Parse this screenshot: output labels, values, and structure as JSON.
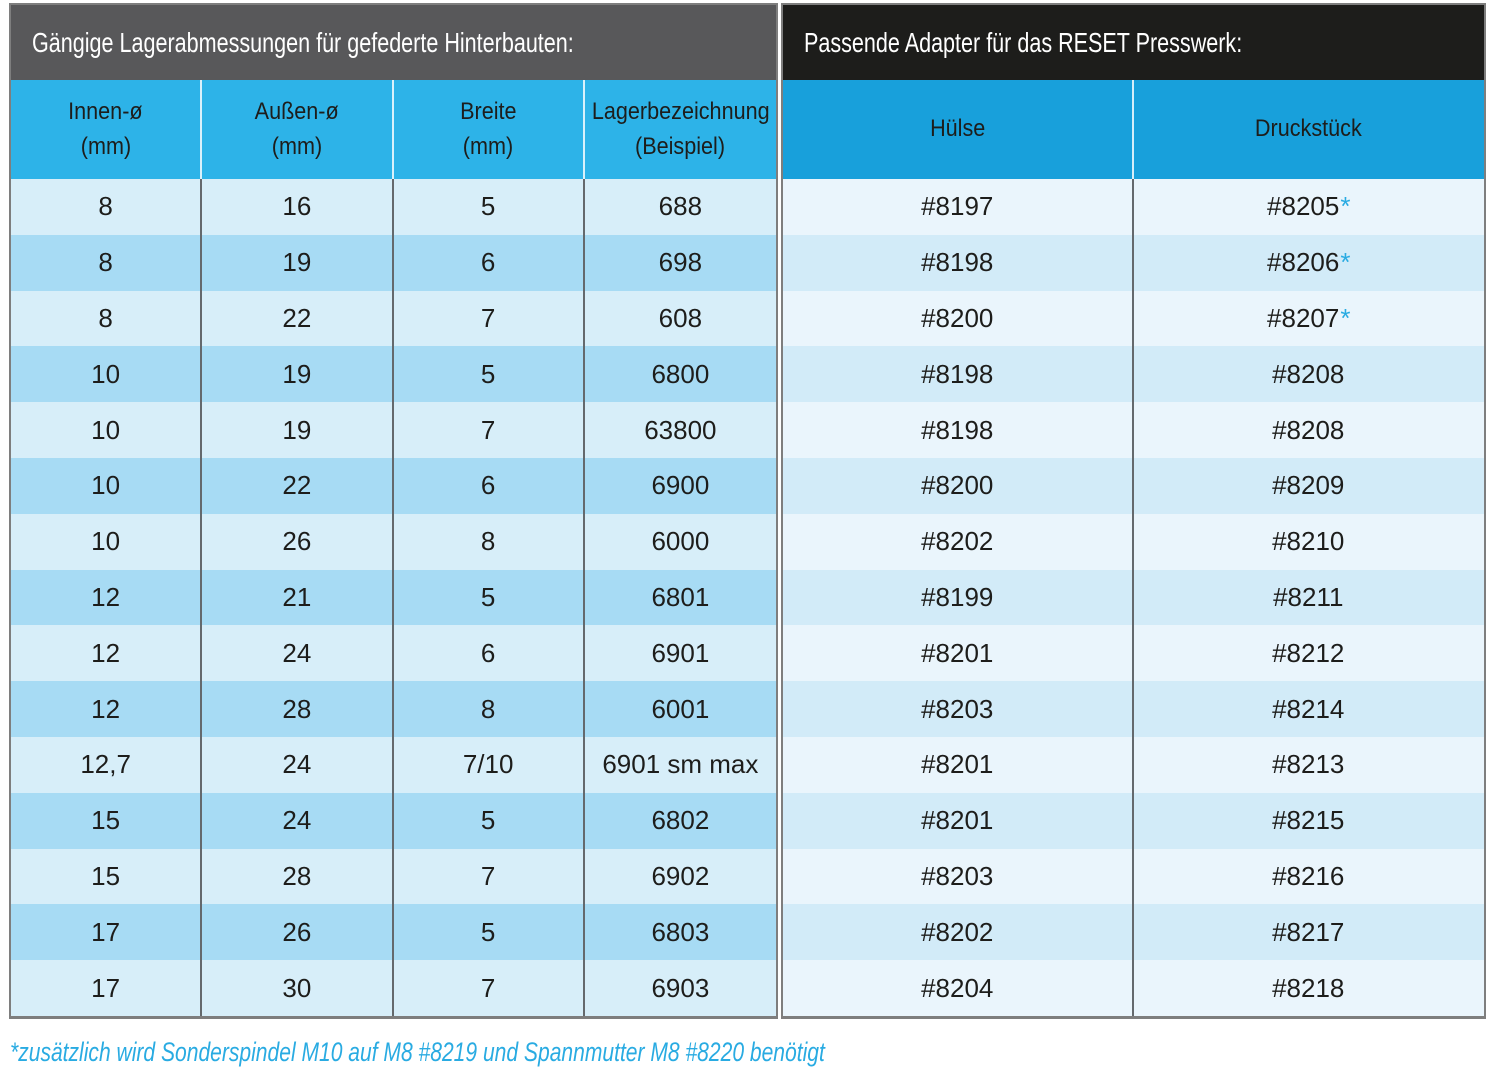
{
  "left_table": {
    "title": "Gängige Lagerabmessungen für gefederte Hinterbauten:",
    "columns": [
      {
        "key": "innen",
        "line1": "Innen-ø",
        "line2": "(mm)"
      },
      {
        "key": "aussen",
        "line1": "Außen-ø",
        "line2": "(mm)"
      },
      {
        "key": "breite",
        "line1": "Breite",
        "line2": "(mm)"
      },
      {
        "key": "lager",
        "line1": "Lagerbezeichnung",
        "line2": "(Beispiel)"
      }
    ]
  },
  "right_table": {
    "title": "Passende Adapter für das RESET Presswerk:",
    "columns": [
      {
        "key": "huelse",
        "line1": "Hülse"
      },
      {
        "key": "druckstueck",
        "line1": "Druckstück"
      }
    ]
  },
  "rows": [
    {
      "innen": "8",
      "aussen": "16",
      "breite": "5",
      "lager": "688",
      "huelse": "#8197",
      "druckstueck": "#8205",
      "star": "*"
    },
    {
      "innen": "8",
      "aussen": "19",
      "breite": "6",
      "lager": "698",
      "huelse": "#8198",
      "druckstueck": "#8206",
      "star": "*"
    },
    {
      "innen": "8",
      "aussen": "22",
      "breite": "7",
      "lager": "608",
      "huelse": "#8200",
      "druckstueck": "#8207",
      "star": "*"
    },
    {
      "innen": "10",
      "aussen": "19",
      "breite": "5",
      "lager": "6800",
      "huelse": "#8198",
      "druckstueck": "#8208",
      "star": ""
    },
    {
      "innen": "10",
      "aussen": "19",
      "breite": "7",
      "lager": "63800",
      "huelse": "#8198",
      "druckstueck": "#8208",
      "star": ""
    },
    {
      "innen": "10",
      "aussen": "22",
      "breite": "6",
      "lager": "6900",
      "huelse": "#8200",
      "druckstueck": "#8209",
      "star": ""
    },
    {
      "innen": "10",
      "aussen": "26",
      "breite": "8",
      "lager": "6000",
      "huelse": "#8202",
      "druckstueck": "#8210",
      "star": ""
    },
    {
      "innen": "12",
      "aussen": "21",
      "breite": "5",
      "lager": "6801",
      "huelse": "#8199",
      "druckstueck": "#8211",
      "star": ""
    },
    {
      "innen": "12",
      "aussen": "24",
      "breite": "6",
      "lager": "6901",
      "huelse": "#8201",
      "druckstueck": "#8212",
      "star": ""
    },
    {
      "innen": "12",
      "aussen": "28",
      "breite": "8",
      "lager": "6001",
      "huelse": "#8203",
      "druckstueck": "#8214",
      "star": ""
    },
    {
      "innen": "12,7",
      "aussen": "24",
      "breite": "7/10",
      "lager": "6901 sm max",
      "huelse": "#8201",
      "druckstueck": "#8213",
      "star": ""
    },
    {
      "innen": "15",
      "aussen": "24",
      "breite": "5",
      "lager": "6802",
      "huelse": "#8201",
      "druckstueck": "#8215",
      "star": ""
    },
    {
      "innen": "15",
      "aussen": "28",
      "breite": "7",
      "lager": "6902",
      "huelse": "#8203",
      "druckstueck": "#8216",
      "star": ""
    },
    {
      "innen": "17",
      "aussen": "26",
      "breite": "5",
      "lager": "6803",
      "huelse": "#8202",
      "druckstueck": "#8217",
      "star": ""
    },
    {
      "innen": "17",
      "aussen": "30",
      "breite": "7",
      "lager": "6903",
      "huelse": "#8204",
      "druckstueck": "#8218",
      "star": ""
    }
  ],
  "footnote": "*zusätzlich wird Sonderspindel M10 auf M8 #8219 und Spannmutter M8 #8220 benötigt",
  "colors": {
    "accent_cyan": "#29abe2",
    "left_title_bg": "#58585a",
    "right_title_bg": "#1d1d1b",
    "left_header_bg": "#2db3e8",
    "right_header_bg": "#18a0db",
    "left_row_light": "#d7eef9",
    "left_row_medium": "#a7dbf4",
    "right_row_light": "#eaf5fc",
    "right_row_medium": "#d2ebf8",
    "text_dark": "#1d1d1b",
    "title_text": "#ffffff"
  }
}
